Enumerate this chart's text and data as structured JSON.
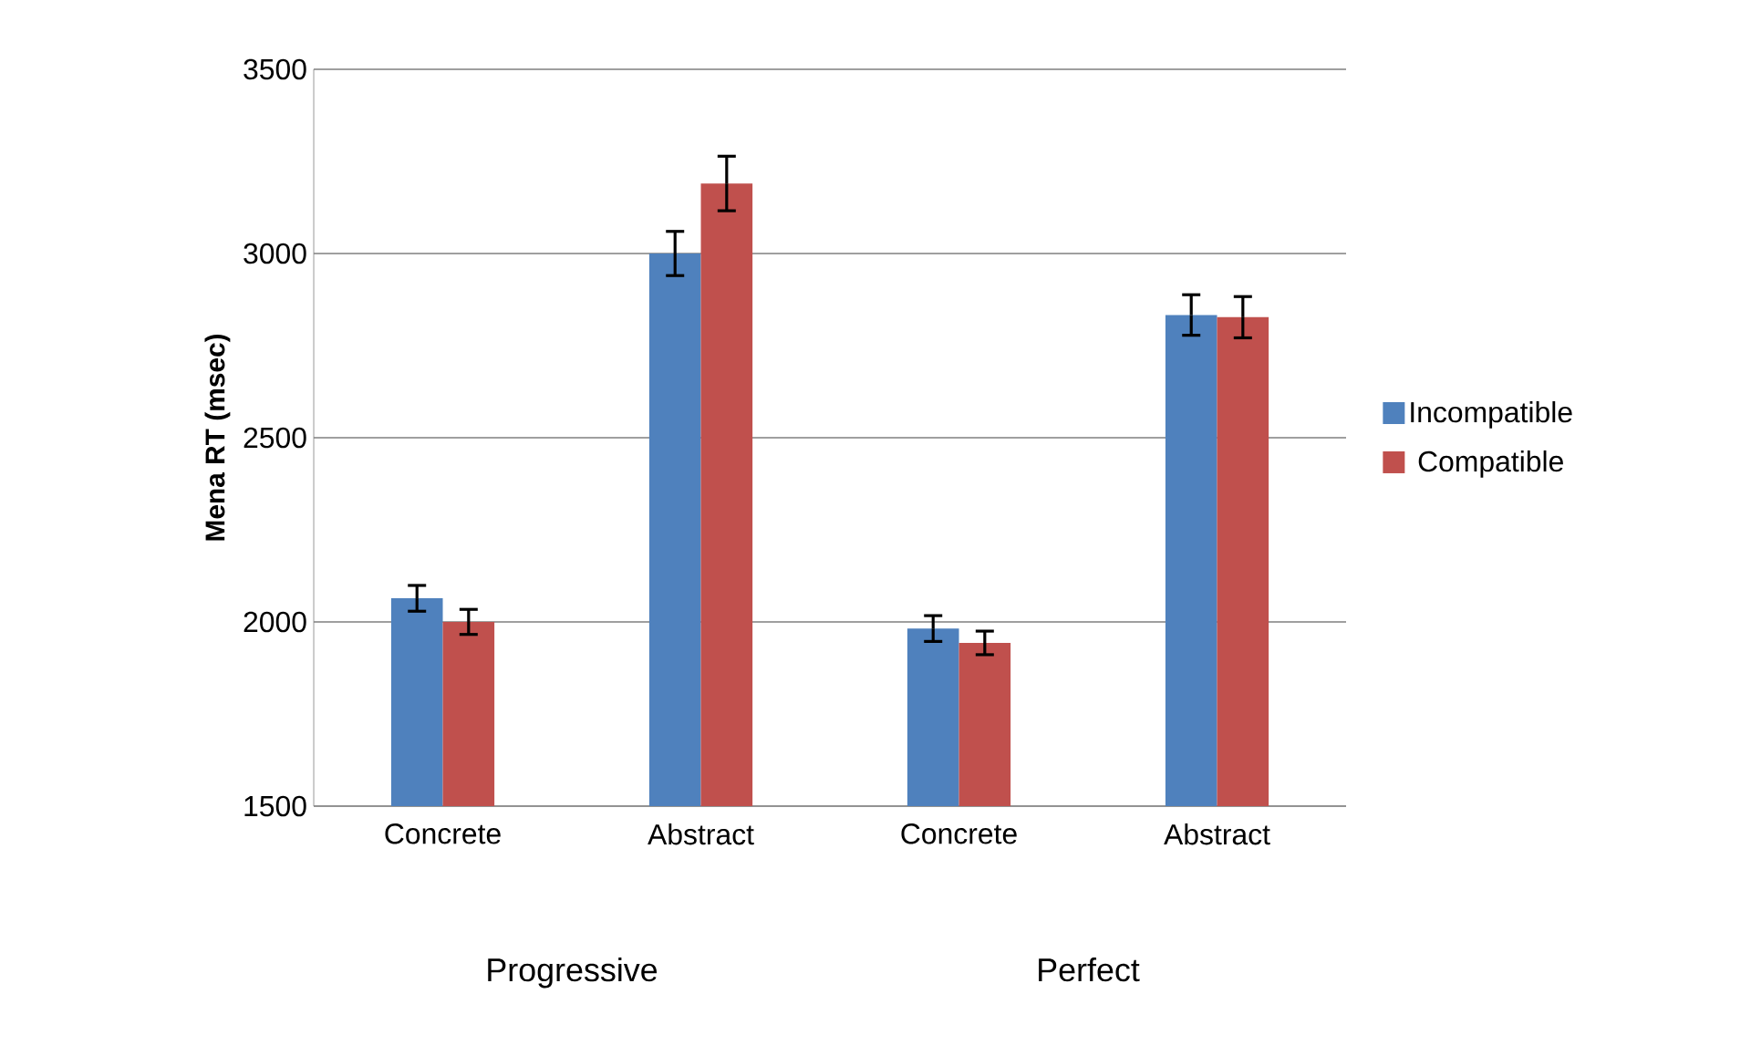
{
  "chart_data": {
    "type": "bar",
    "ylabel": "Mena RT (msec)",
    "categories": [
      "Concrete",
      "Abstract",
      "Concrete",
      "Abstract"
    ],
    "series": [
      {
        "name": "Incompatible",
        "color": "#4f81bd",
        "values": [
          2064,
          3000,
          1982,
          2833
        ],
        "errors": [
          35,
          60,
          35,
          55
        ]
      },
      {
        "name": "Compatible",
        "color": "#c0504d",
        "values": [
          2000,
          3190,
          1943,
          2827
        ],
        "errors": [
          34,
          74,
          32,
          56
        ]
      }
    ],
    "ylim": [
      1500,
      3500
    ],
    "yticks": [
      1500,
      2000,
      2500,
      3000,
      3500
    ],
    "grid": "y",
    "legend": "right",
    "annotations": [
      "Progressive",
      "Perfect"
    ]
  }
}
